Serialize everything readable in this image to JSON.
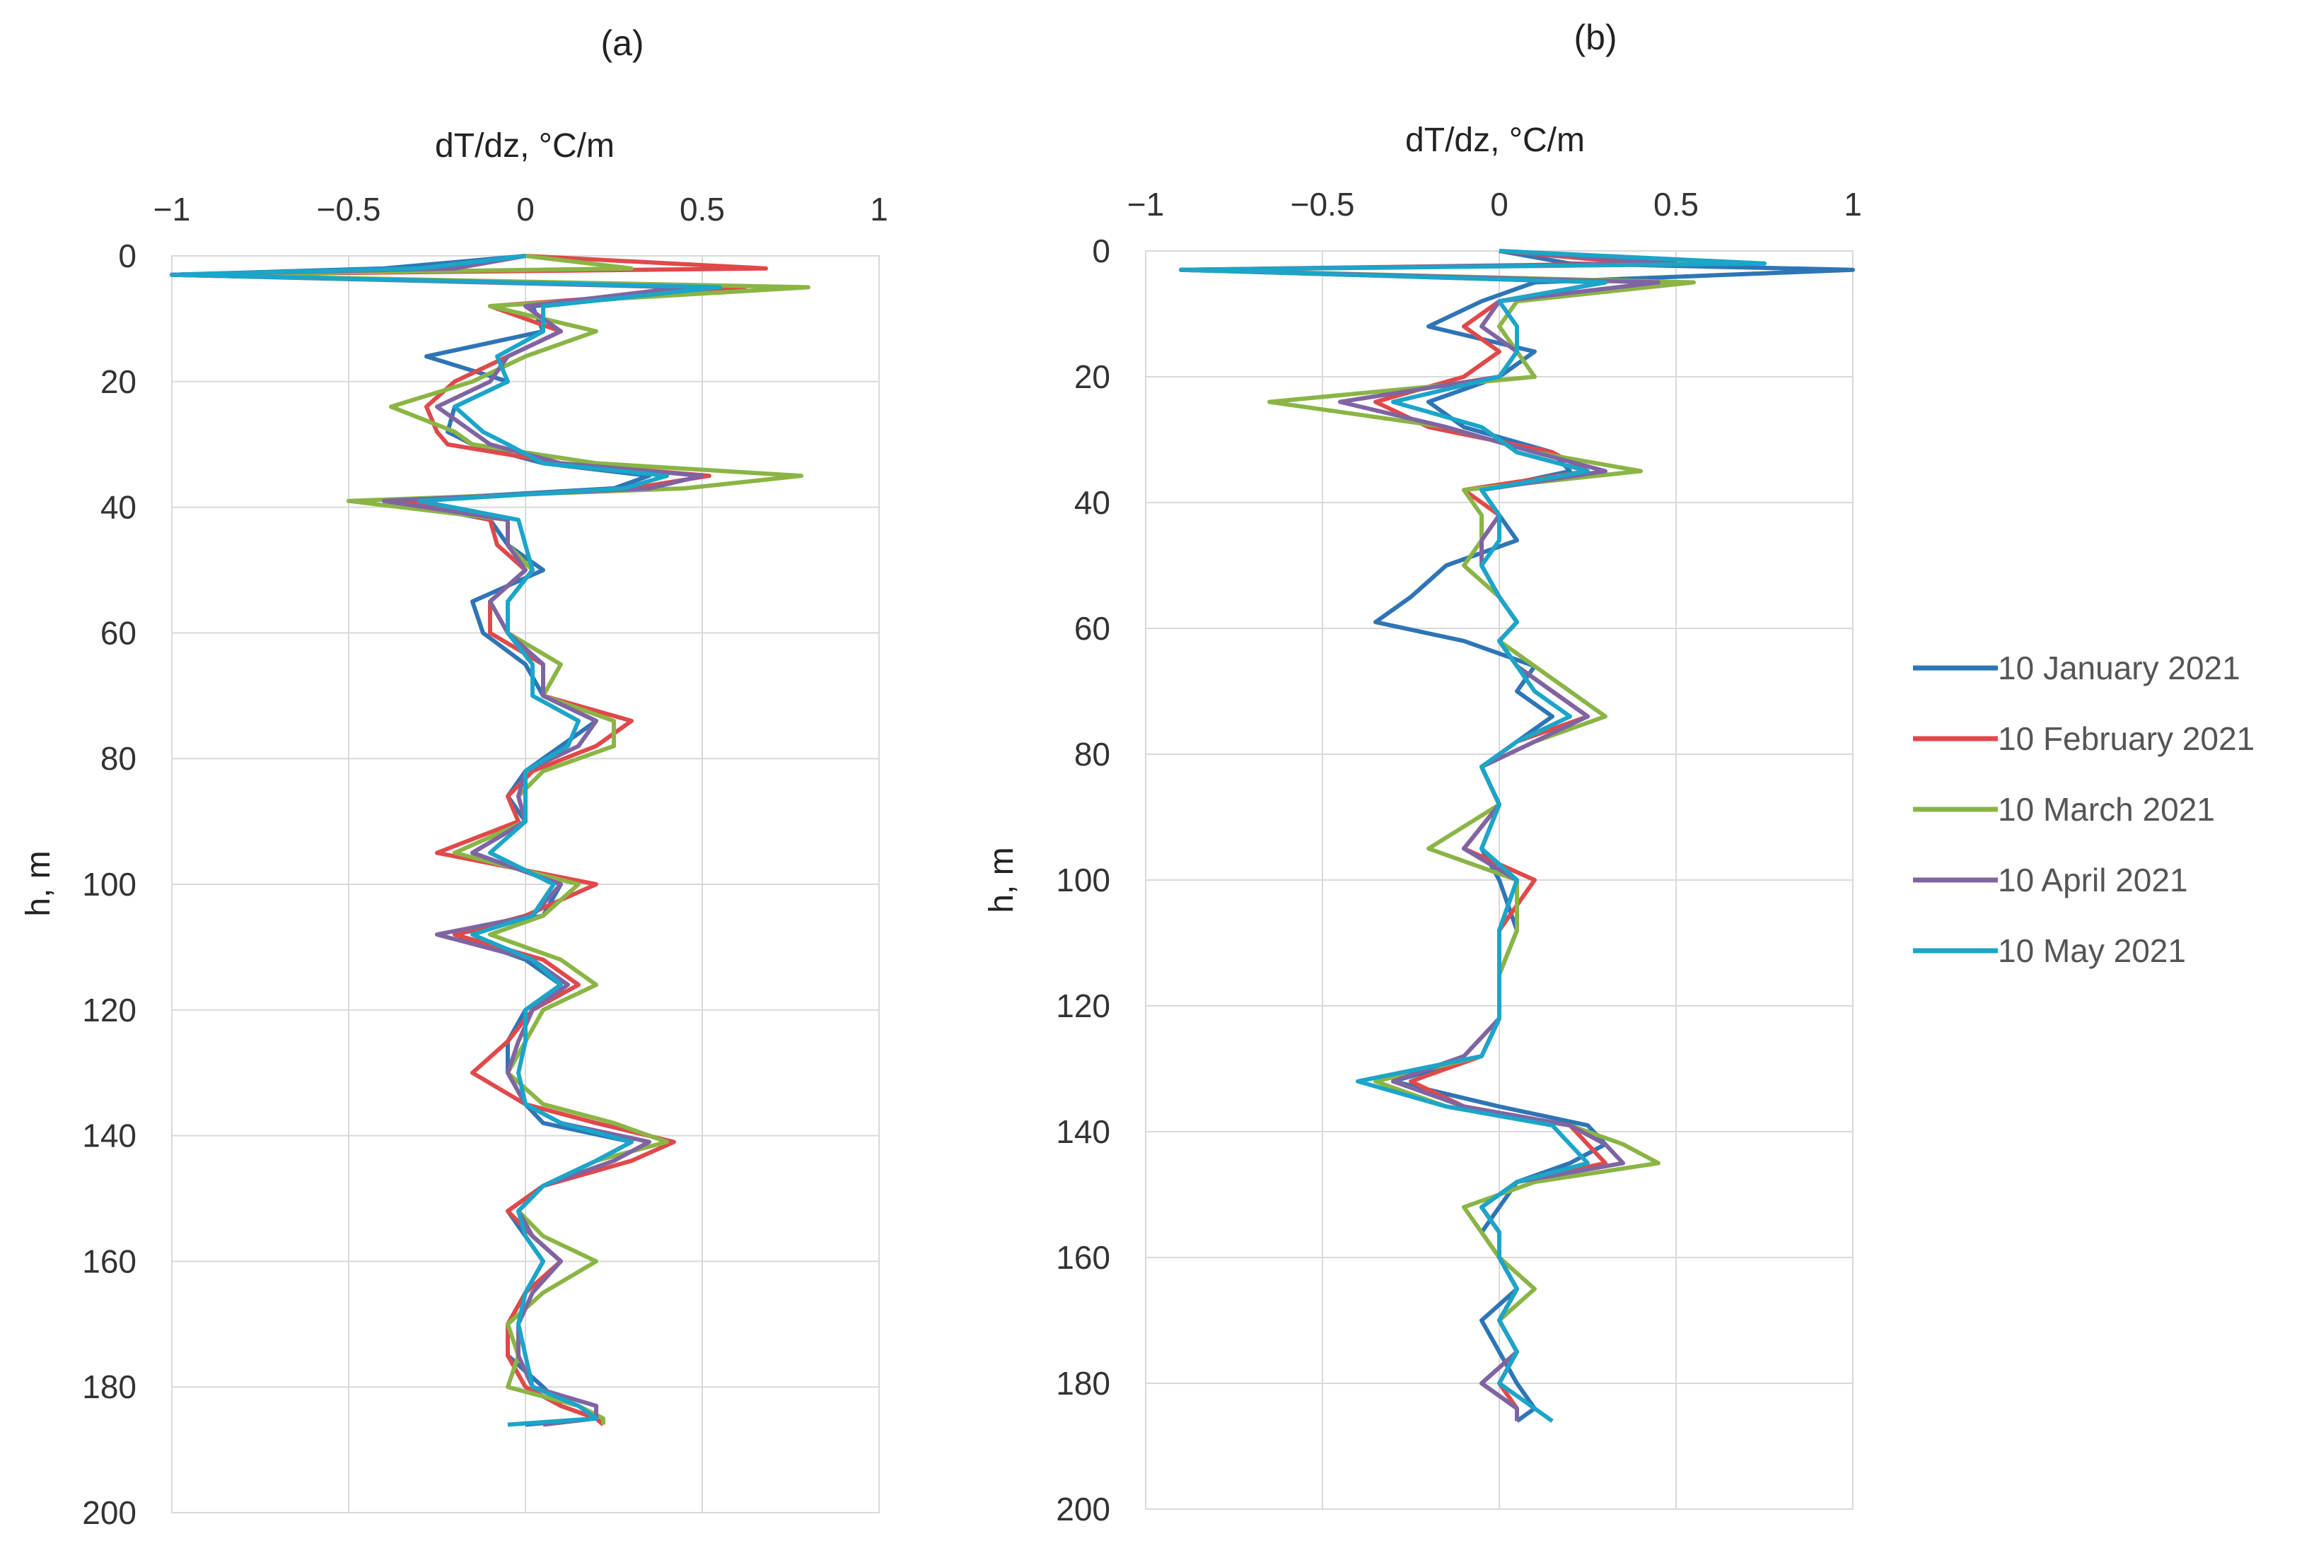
{
  "chart_data": [
    {
      "type": "line",
      "panel_label": "(a)",
      "xlabel": "dT/dz, °C/m",
      "ylabel": "h, m",
      "xlim": [
        -1,
        1
      ],
      "ylim": [
        0,
        200
      ],
      "y_inverted": true,
      "x_ticks": [
        "−1",
        "−0.5",
        "0",
        "0.5",
        "1"
      ],
      "y_ticks": [
        "0",
        "20",
        "40",
        "60",
        "80",
        "100",
        "120",
        "140",
        "160",
        "180",
        "200"
      ],
      "grid": true,
      "series": [
        {
          "name": "10 January 2021",
          "color": "#2e75b6",
          "h": [
            0,
            2,
            3,
            5,
            8,
            12,
            16,
            20,
            24,
            28,
            30,
            33,
            35,
            37,
            39,
            42,
            46,
            50,
            55,
            60,
            65,
            70,
            74,
            78,
            82,
            86,
            90,
            95,
            100,
            105,
            108,
            112,
            116,
            120,
            125,
            130,
            135,
            138,
            141,
            144,
            148,
            152,
            156,
            160,
            165,
            170,
            175,
            180,
            183,
            185,
            186
          ],
          "dTdz": [
            0,
            -0.4,
            -1,
            0.62,
            0.02,
            0.05,
            -0.28,
            -0.05,
            -0.2,
            -0.22,
            -0.15,
            0.05,
            0.35,
            0.25,
            -0.38,
            -0.1,
            -0.05,
            0.05,
            -0.15,
            -0.12,
            0,
            0.05,
            0.2,
            0.1,
            0,
            -0.05,
            0,
            -0.15,
            0.1,
            0.05,
            -0.2,
            0,
            0.1,
            0,
            -0.05,
            -0.05,
            0,
            0.05,
            0.3,
            0.2,
            0.05,
            -0.05,
            0,
            0.05,
            0,
            -0.05,
            -0.05,
            0.05,
            0.1,
            0.2,
            0
          ]
        },
        {
          "name": "10 February 2021",
          "color": "#e0494a",
          "h": [
            0,
            2,
            3,
            5,
            8,
            12,
            16,
            20,
            24,
            28,
            30,
            33,
            35,
            37,
            39,
            42,
            46,
            50,
            55,
            60,
            65,
            70,
            74,
            78,
            82,
            86,
            90,
            95,
            100,
            105,
            108,
            112,
            116,
            120,
            125,
            130,
            135,
            138,
            141,
            144,
            148,
            152,
            156,
            160,
            165,
            170,
            175,
            180,
            183,
            185,
            186
          ],
          "dTdz": [
            0,
            0.68,
            -1,
            0.62,
            -0.1,
            0.1,
            -0.05,
            -0.2,
            -0.28,
            -0.25,
            -0.22,
            0.1,
            0.52,
            0.3,
            -0.35,
            -0.1,
            -0.08,
            0,
            -0.1,
            -0.1,
            0.05,
            0.05,
            0.3,
            0.2,
            0.02,
            -0.05,
            -0.02,
            -0.25,
            0.2,
            0,
            -0.2,
            0.05,
            0.15,
            0.02,
            -0.05,
            -0.15,
            0,
            0.2,
            0.42,
            0.3,
            0.05,
            -0.05,
            0.02,
            0.1,
            0,
            -0.05,
            -0.05,
            0,
            0.1,
            0.2,
            0.22
          ]
        },
        {
          "name": "10 March 2021",
          "color": "#8ab545",
          "h": [
            0,
            2,
            3,
            5,
            8,
            12,
            16,
            20,
            24,
            28,
            30,
            33,
            35,
            37,
            39,
            42,
            46,
            50,
            55,
            60,
            65,
            70,
            74,
            78,
            82,
            86,
            90,
            95,
            100,
            105,
            108,
            112,
            116,
            120,
            125,
            130,
            135,
            138,
            141,
            144,
            148,
            152,
            156,
            160,
            165,
            170,
            175,
            180,
            183,
            185,
            186
          ],
          "dTdz": [
            0,
            0.3,
            -1,
            0.8,
            -0.1,
            0.2,
            0,
            -0.15,
            -0.38,
            -0.2,
            -0.15,
            0.2,
            0.78,
            0.45,
            -0.5,
            -0.05,
            -0.05,
            0.02,
            -0.05,
            -0.05,
            0.1,
            0.05,
            0.25,
            0.25,
            0.05,
            -0.02,
            0,
            -0.2,
            0.15,
            0.05,
            -0.1,
            0.1,
            0.2,
            0.05,
            0,
            -0.05,
            0.05,
            0.25,
            0.4,
            0.2,
            0.05,
            -0.02,
            0.05,
            0.2,
            0.05,
            -0.05,
            -0.02,
            -0.05,
            0.15,
            0.22,
            0.22
          ]
        },
        {
          "name": "10 April 2021",
          "color": "#8064a2",
          "h": [
            0,
            2,
            3,
            5,
            8,
            12,
            16,
            20,
            24,
            28,
            30,
            33,
            35,
            37,
            39,
            42,
            46,
            50,
            55,
            60,
            65,
            70,
            74,
            78,
            82,
            86,
            90,
            95,
            100,
            105,
            108,
            112,
            116,
            120,
            125,
            130,
            135,
            138,
            141,
            144,
            148,
            152,
            156,
            160,
            165,
            170,
            175,
            180,
            183,
            185,
            186
          ],
          "dTdz": [
            0,
            -0.2,
            -1,
            0.45,
            0,
            0.1,
            -0.05,
            -0.1,
            -0.25,
            -0.15,
            -0.1,
            0.1,
            0.5,
            0.35,
            -0.4,
            -0.05,
            -0.05,
            0,
            -0.1,
            -0.05,
            0.05,
            0.05,
            0.2,
            0.15,
            0,
            -0.02,
            0,
            -0.15,
            0.1,
            0.02,
            -0.25,
            0.02,
            0.12,
            0.02,
            -0.02,
            -0.05,
            0,
            0.1,
            0.35,
            0.25,
            0.05,
            -0.02,
            0.02,
            0.1,
            0.02,
            -0.02,
            -0.02,
            0.02,
            0.2,
            0.2,
            0.05
          ]
        },
        {
          "name": "10 May 2021",
          "color": "#1ba5c8",
          "h": [
            0,
            2,
            3,
            5,
            8,
            12,
            16,
            20,
            24,
            28,
            30,
            33,
            35,
            37,
            39,
            42,
            46,
            50,
            55,
            60,
            65,
            70,
            74,
            78,
            82,
            86,
            90,
            95,
            100,
            105,
            108,
            112,
            116,
            120,
            125,
            130,
            135,
            138,
            141,
            144,
            148,
            152,
            156,
            160,
            165,
            170,
            175,
            180,
            183,
            185,
            186
          ],
          "dTdz": [
            0,
            -0.3,
            -1,
            0.55,
            0.05,
            0.05,
            -0.08,
            -0.05,
            -0.2,
            -0.12,
            -0.05,
            0.05,
            0.4,
            0.28,
            -0.3,
            -0.02,
            0,
            0.02,
            -0.05,
            -0.05,
            0.02,
            0.02,
            0.15,
            0.12,
            0,
            0,
            0,
            -0.1,
            0.08,
            0.02,
            -0.15,
            0.02,
            0.1,
            0,
            0,
            -0.02,
            0,
            0.1,
            0.3,
            0.2,
            0.05,
            -0.02,
            0,
            0.05,
            0,
            -0.02,
            0,
            0.02,
            0.15,
            0.2,
            -0.05
          ]
        }
      ]
    },
    {
      "type": "line",
      "panel_label": "(b)",
      "xlabel": "dT/dz, °C/m",
      "ylabel": "h, m",
      "xlim": [
        -1,
        1
      ],
      "ylim": [
        0,
        200
      ],
      "y_inverted": true,
      "x_ticks": [
        "−1",
        "−0.5",
        "0",
        "0.5",
        "1"
      ],
      "y_ticks": [
        "0",
        "20",
        "40",
        "60",
        "80",
        "100",
        "120",
        "140",
        "160",
        "180",
        "200"
      ],
      "grid": true,
      "legend_position": "right",
      "series": [
        {
          "name": "10 January 2021",
          "color": "#2e75b6",
          "h": [
            0,
            2,
            3,
            5,
            8,
            12,
            16,
            20,
            24,
            28,
            32,
            35,
            38,
            42,
            46,
            50,
            55,
            59,
            62,
            66,
            70,
            74,
            78,
            82,
            88,
            95,
            100,
            108,
            115,
            122,
            128,
            132,
            136,
            139,
            142,
            145,
            148,
            152,
            156,
            160,
            165,
            170,
            175,
            180,
            184,
            186
          ],
          "dTdz": [
            0,
            0.2,
            1,
            0.1,
            -0.05,
            -0.2,
            0.1,
            0,
            -0.2,
            -0.1,
            0.15,
            0.2,
            -0.05,
            0,
            0.05,
            -0.15,
            -0.25,
            -0.35,
            -0.1,
            0.1,
            0.05,
            0.15,
            0.05,
            -0.05,
            0,
            -0.05,
            0,
            0.05,
            0,
            0,
            -0.05,
            -0.3,
            0,
            0.25,
            0.3,
            0.2,
            0.05,
            0,
            -0.05,
            0,
            0.05,
            -0.05,
            0,
            0.05,
            0.1,
            0.05
          ]
        },
        {
          "name": "10 February 2021",
          "color": "#e0494a",
          "h": [
            0,
            2,
            3,
            5,
            8,
            12,
            16,
            20,
            24,
            28,
            32,
            35,
            38,
            42,
            46,
            50,
            55,
            59,
            62,
            66,
            70,
            74,
            78,
            82,
            88,
            95,
            100,
            108,
            115,
            122,
            128,
            132,
            136,
            139,
            142,
            145,
            148,
            152,
            156,
            160,
            165,
            170,
            175,
            180,
            184,
            186
          ],
          "dTdz": [
            0,
            0.4,
            -0.9,
            0.3,
            0,
            -0.1,
            0,
            -0.1,
            -0.35,
            -0.2,
            0.15,
            0.25,
            -0.1,
            0,
            -0.05,
            -0.05,
            0,
            0.05,
            0,
            0.05,
            0.15,
            0.25,
            0.05,
            -0.05,
            0,
            -0.1,
            0.1,
            0,
            0,
            0,
            -0.05,
            -0.25,
            -0.1,
            0.2,
            0.25,
            0.3,
            0.05,
            -0.05,
            0,
            0,
            0.05,
            0,
            0.05,
            0,
            0.05,
            0.05
          ]
        },
        {
          "name": "10 March 2021",
          "color": "#8ab545",
          "h": [
            0,
            2,
            3,
            5,
            8,
            12,
            16,
            20,
            24,
            28,
            32,
            35,
            38,
            42,
            46,
            50,
            55,
            59,
            62,
            66,
            70,
            74,
            78,
            82,
            88,
            95,
            100,
            108,
            115,
            122,
            128,
            132,
            136,
            139,
            142,
            145,
            148,
            152,
            156,
            160,
            165,
            170,
            175,
            180,
            184,
            186
          ],
          "dTdz": [
            0,
            0.7,
            -0.9,
            0.55,
            0.05,
            0,
            0.05,
            0.1,
            -0.65,
            -0.15,
            0.1,
            0.4,
            -0.1,
            -0.05,
            -0.05,
            -0.1,
            0,
            0.05,
            0,
            0.1,
            0.2,
            0.3,
            0.1,
            -0.05,
            0,
            -0.2,
            0.05,
            0.05,
            0,
            0,
            -0.05,
            -0.35,
            -0.15,
            0.2,
            0.35,
            0.45,
            0.1,
            -0.1,
            -0.05,
            0,
            0.1,
            0,
            0.05,
            -0.05,
            0.05,
            0.05
          ]
        },
        {
          "name": "10 April 2021",
          "color": "#8064a2",
          "h": [
            0,
            2,
            3,
            5,
            8,
            12,
            16,
            20,
            24,
            28,
            32,
            35,
            38,
            42,
            46,
            50,
            55,
            59,
            62,
            66,
            70,
            74,
            78,
            82,
            88,
            95,
            100,
            108,
            115,
            122,
            128,
            132,
            136,
            139,
            142,
            145,
            148,
            152,
            156,
            160,
            165,
            170,
            175,
            180,
            184,
            186
          ],
          "dTdz": [
            0,
            0.5,
            -0.9,
            0.45,
            0,
            -0.05,
            0.05,
            0,
            -0.45,
            -0.15,
            0.1,
            0.3,
            -0.05,
            0,
            -0.05,
            -0.05,
            0,
            0.05,
            0,
            0.05,
            0.15,
            0.25,
            0.1,
            -0.05,
            0,
            -0.1,
            0.05,
            0,
            0,
            0,
            -0.1,
            -0.3,
            -0.1,
            0.2,
            0.3,
            0.35,
            0.05,
            -0.05,
            0,
            0,
            0.05,
            0,
            0.05,
            -0.05,
            0.05,
            0.05
          ]
        },
        {
          "name": "10 May 2021",
          "color": "#1ba5c8",
          "h": [
            0,
            2,
            3,
            5,
            8,
            12,
            16,
            20,
            24,
            28,
            32,
            35,
            38,
            42,
            46,
            50,
            55,
            59,
            62,
            66,
            70,
            74,
            78,
            82,
            88,
            95,
            100,
            108,
            115,
            122,
            128,
            132,
            136,
            139,
            142,
            145,
            148,
            152,
            156,
            160,
            165,
            170,
            175,
            180,
            184,
            186
          ],
          "dTdz": [
            0,
            0.75,
            -0.9,
            0.3,
            0,
            0.05,
            0.05,
            0,
            -0.3,
            -0.05,
            0.05,
            0.25,
            -0.05,
            0,
            0,
            -0.05,
            0,
            0.05,
            0,
            0.05,
            0.1,
            0.2,
            0.05,
            -0.05,
            0,
            -0.05,
            0.05,
            0,
            0,
            0,
            -0.05,
            -0.4,
            -0.15,
            0.15,
            0.2,
            0.25,
            0.05,
            -0.05,
            0,
            0,
            0.05,
            0,
            0.05,
            0,
            0.1,
            0.15
          ]
        }
      ]
    }
  ]
}
